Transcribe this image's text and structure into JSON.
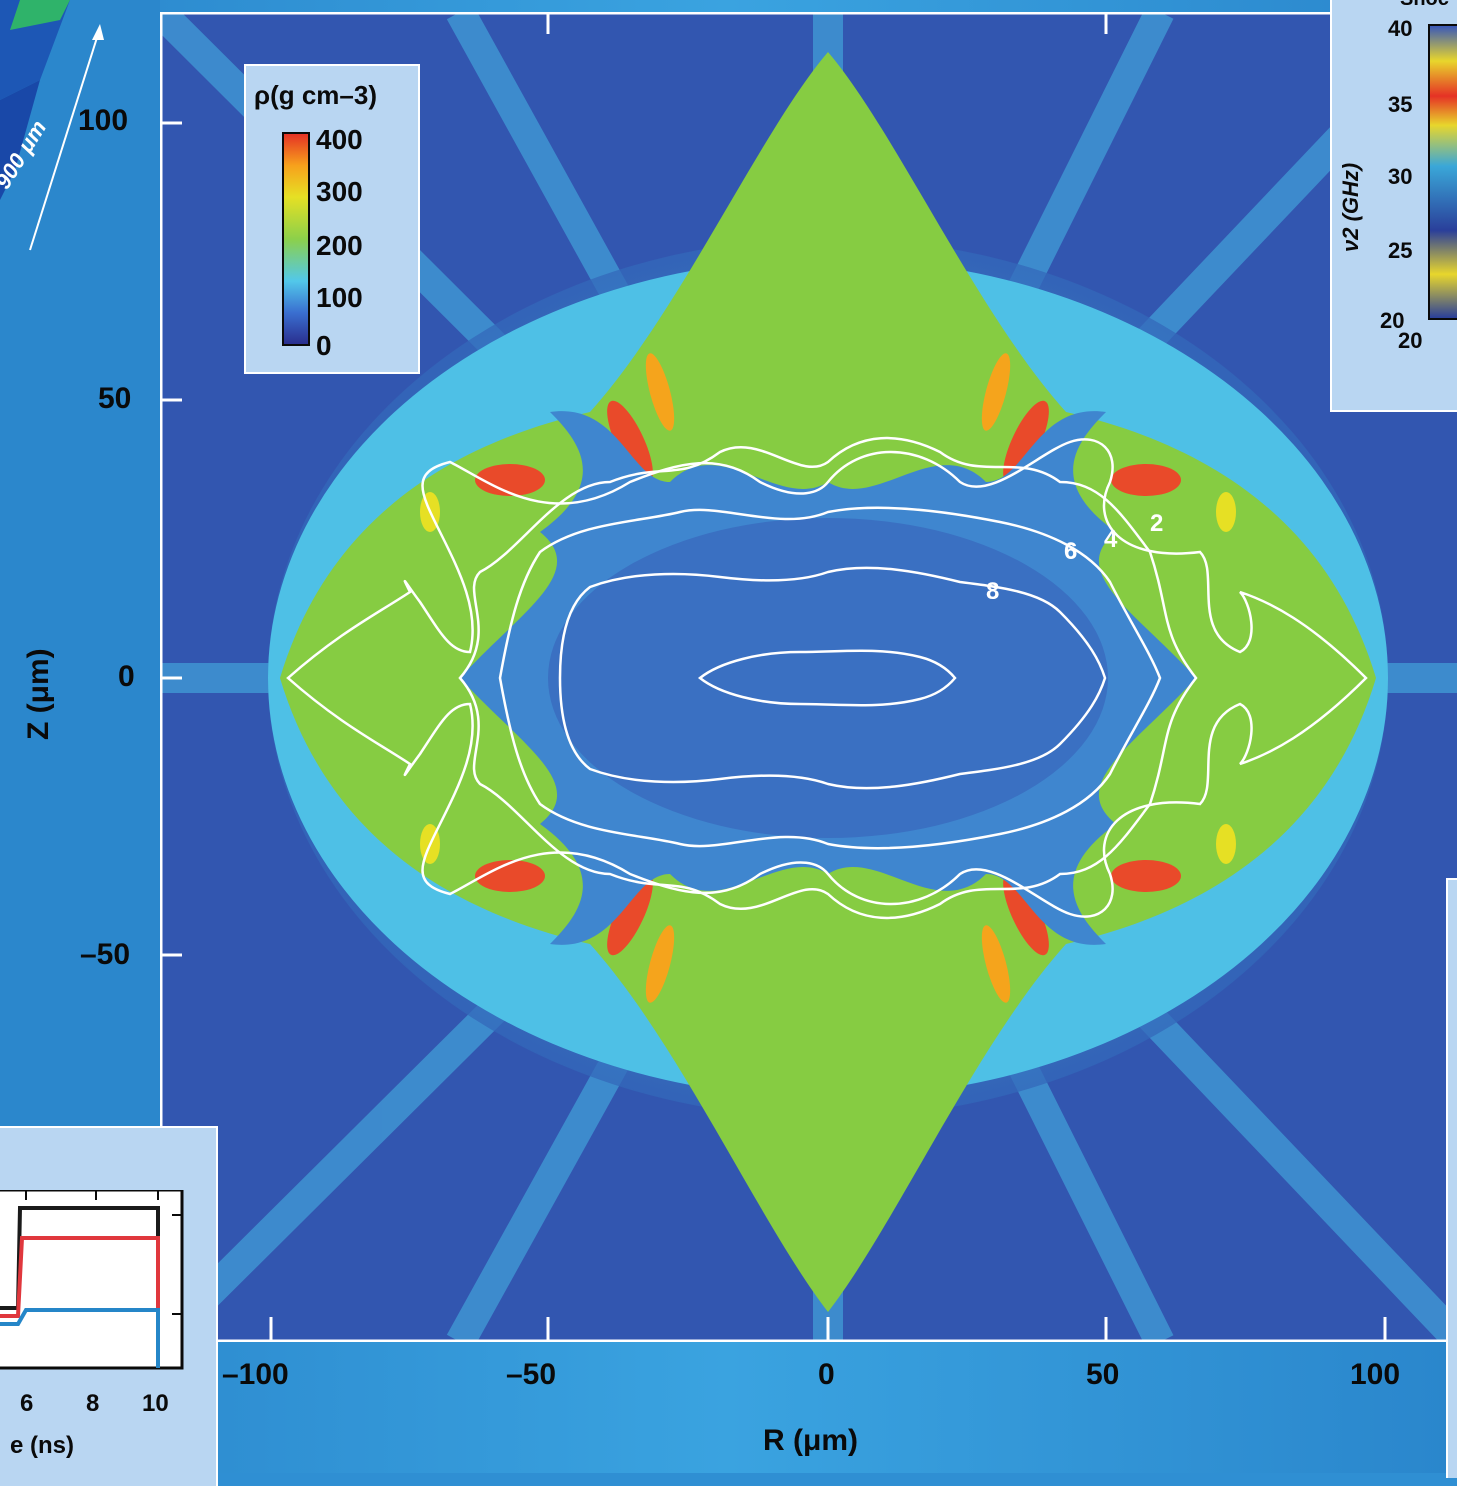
{
  "chart_data": {
    "type": "heatmap",
    "title": "",
    "xlabel": "R (μm)",
    "ylabel": "Z (μm)",
    "x_ticks": [
      "–100",
      "–50",
      "0",
      "50",
      "100"
    ],
    "y_ticks": [
      "100",
      "50",
      "0",
      "–50"
    ],
    "xlim": [
      -100,
      100
    ],
    "ylim": [
      -70,
      120
    ],
    "colorbar": {
      "title": "ρ(g cm–3)",
      "ticks": [
        "400",
        "300",
        "200",
        "100",
        "0"
      ],
      "range": [
        0,
        400
      ],
      "colors": [
        "#2a2f8f",
        "#3a6fd0",
        "#52c8ea",
        "#8cd04a",
        "#e6e024",
        "#f7a11c",
        "#e53225"
      ]
    },
    "contours": {
      "color": "#ffffff",
      "labels": [
        "2",
        "4",
        "6",
        "8"
      ]
    }
  },
  "left_panel": {
    "scale_label": "900 μm"
  },
  "top_right_inset": {
    "title_fragment": "Shoc",
    "ylabel": "ν2 (GHz)",
    "y_ticks": [
      "40",
      "35",
      "30",
      "25",
      "20"
    ],
    "x_tick": "20"
  },
  "bottom_left_inset": {
    "xlabel": "e (ns)",
    "x_ticks": [
      "6",
      "8",
      "10"
    ],
    "series_colors": [
      "#1a1a1a",
      "#e0373d",
      "#2586c8"
    ]
  }
}
